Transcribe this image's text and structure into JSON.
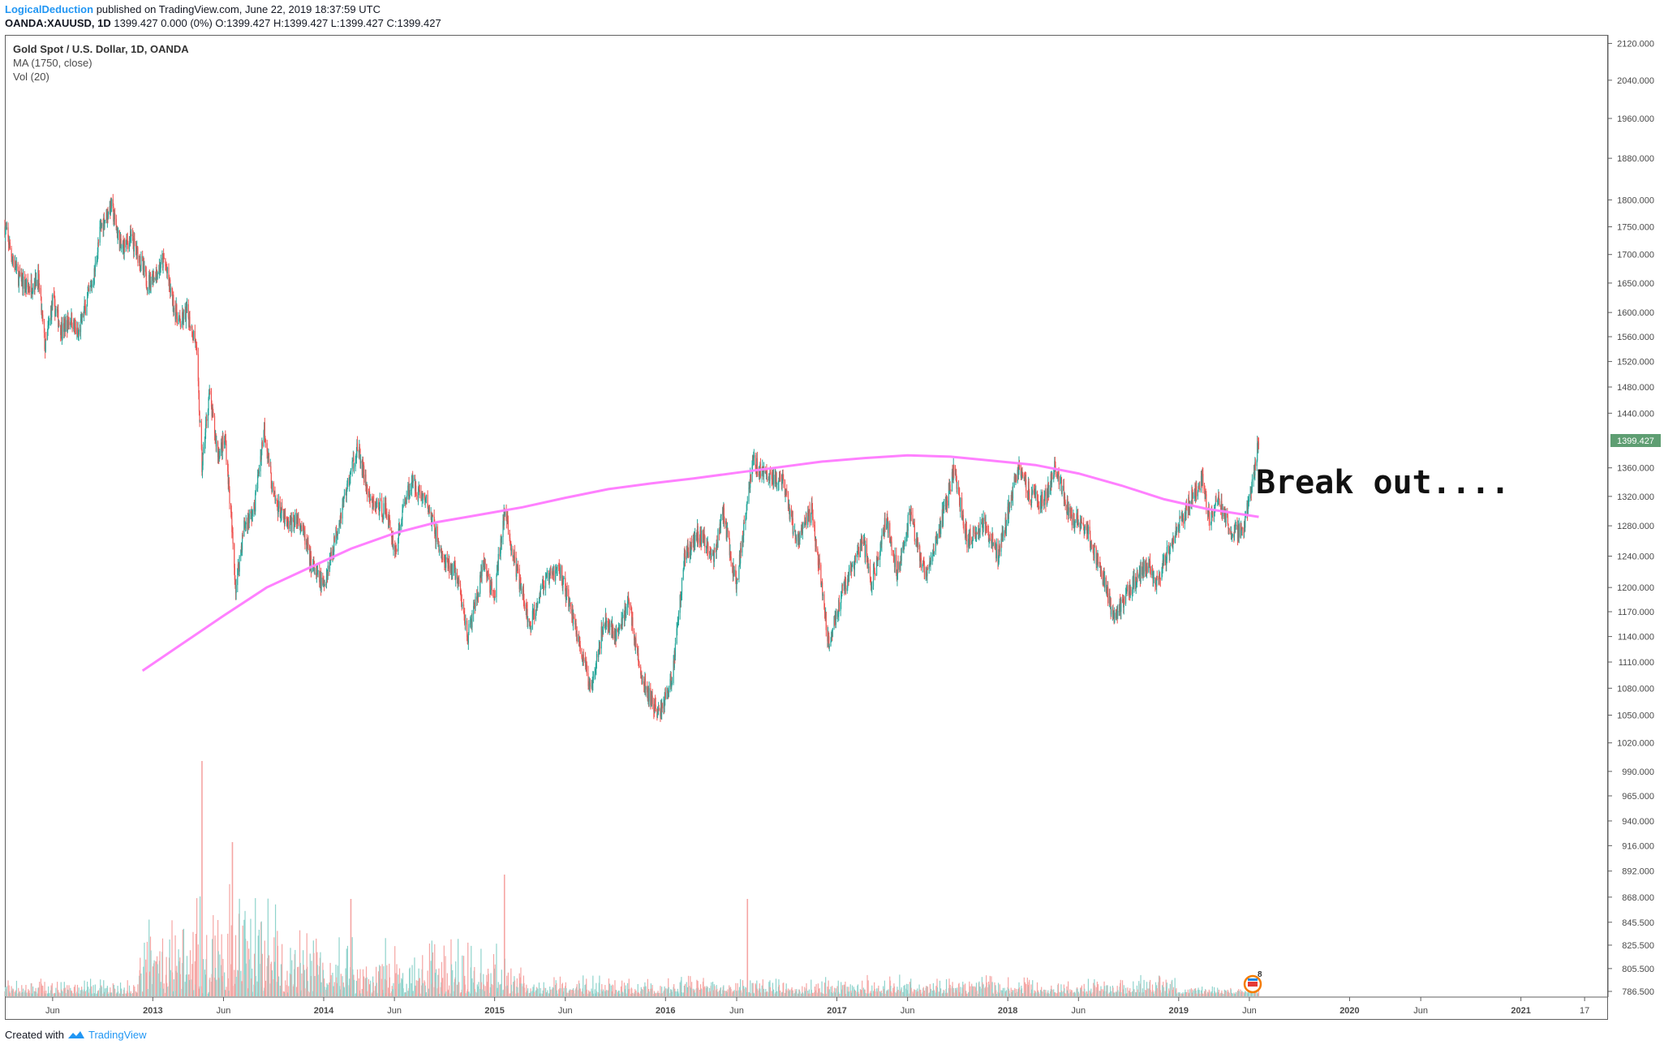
{
  "header": {
    "author": "LogicalDeduction",
    "published": "published on TradingView.com, June 22, 2019 18:37:59 UTC",
    "symbol_line": "OANDA:XAUUSD, 1D",
    "ohlc": "1399.427 0.000 (0%) O:1399.427 H:1399.427 L:1399.427 C:1399.427"
  },
  "legend": {
    "title": "Gold Spot / U.S. Dollar, 1D, OANDA",
    "ma": "MA (1750, close)",
    "vol": "Vol (20)"
  },
  "footer": {
    "created_with": "Created with",
    "brand": "TradingView"
  },
  "colors": {
    "up": "#26a69a",
    "down": "#ef5350",
    "ma": "#ff80ff",
    "vol_up": "#8fd3cc",
    "vol_down": "#f5a5a3",
    "price_tag": "#5e9e72"
  },
  "chart_data": {
    "type": "candlestick",
    "title": "Gold Spot / U.S. Dollar, 1D, OANDA",
    "price_scale": "log",
    "ylim": [
      786.5,
      2130
    ],
    "y_ticks": [
      "2120.000",
      "2040.000",
      "1960.000",
      "1880.000",
      "1800.000",
      "1750.000",
      "1700.000",
      "1650.000",
      "1600.000",
      "1560.000",
      "1520.000",
      "1480.000",
      "1440.000",
      "1360.000",
      "1320.000",
      "1280.000",
      "1240.000",
      "1200.000",
      "1170.000",
      "1140.000",
      "1110.000",
      "1080.000",
      "1050.000",
      "1020.000",
      "990.000",
      "965.000",
      "940.000",
      "916.000",
      "892.000",
      "868.000",
      "845.500",
      "825.500",
      "805.500",
      "786.500"
    ],
    "x_ticks": [
      {
        "label": "Jun",
        "date": "2012-06-01",
        "bold": false
      },
      {
        "label": "2013",
        "date": "2013-01-01",
        "bold": true
      },
      {
        "label": "Jun",
        "date": "2013-06-01",
        "bold": false
      },
      {
        "label": "2014",
        "date": "2014-01-01",
        "bold": true
      },
      {
        "label": "Jun",
        "date": "2014-06-01",
        "bold": false
      },
      {
        "label": "2015",
        "date": "2015-01-01",
        "bold": true
      },
      {
        "label": "Jun",
        "date": "2015-06-01",
        "bold": false
      },
      {
        "label": "2016",
        "date": "2016-01-01",
        "bold": true
      },
      {
        "label": "Jun",
        "date": "2016-06-01",
        "bold": false
      },
      {
        "label": "2017",
        "date": "2017-01-01",
        "bold": true
      },
      {
        "label": "Jun",
        "date": "2017-06-01",
        "bold": false
      },
      {
        "label": "2018",
        "date": "2018-01-01",
        "bold": true
      },
      {
        "label": "Jun",
        "date": "2018-06-01",
        "bold": false
      },
      {
        "label": "2019",
        "date": "2019-01-01",
        "bold": true
      },
      {
        "label": "Jun",
        "date": "2019-06-01",
        "bold": false
      },
      {
        "label": "2020",
        "date": "2020-01-01",
        "bold": true
      },
      {
        "label": "Jun",
        "date": "2020-06-01",
        "bold": false
      },
      {
        "label": "2021",
        "date": "2021-01-01",
        "bold": true
      },
      {
        "label": "17",
        "date": "2021-05-17",
        "bold": false
      }
    ],
    "x_range": [
      "2012-02-20",
      "2021-07-06"
    ],
    "last_price_label": "1399.427",
    "last_price": 1399.427,
    "annotation": "Break out....",
    "price_path": [
      [
        "2012-02-20",
        1750
      ],
      [
        "2012-03-05",
        1700
      ],
      [
        "2012-03-20",
        1660
      ],
      [
        "2012-04-10",
        1640
      ],
      [
        "2012-05-01",
        1660
      ],
      [
        "2012-05-16",
        1540
      ],
      [
        "2012-06-01",
        1620
      ],
      [
        "2012-06-20",
        1570
      ],
      [
        "2012-07-10",
        1590
      ],
      [
        "2012-07-25",
        1560
      ],
      [
        "2012-08-10",
        1610
      ],
      [
        "2012-08-28",
        1660
      ],
      [
        "2012-09-12",
        1750
      ],
      [
        "2012-10-04",
        1790
      ],
      [
        "2012-10-25",
        1710
      ],
      [
        "2012-11-15",
        1730
      ],
      [
        "2012-12-05",
        1690
      ],
      [
        "2012-12-20",
        1650
      ],
      [
        "2013-01-10",
        1670
      ],
      [
        "2013-01-25",
        1690
      ],
      [
        "2013-02-15",
        1610
      ],
      [
        "2013-02-28",
        1580
      ],
      [
        "2013-03-15",
        1600
      ],
      [
        "2013-04-03",
        1550
      ],
      [
        "2013-04-16",
        1360
      ],
      [
        "2013-05-01",
        1470
      ],
      [
        "2013-05-20",
        1380
      ],
      [
        "2013-06-05",
        1400
      ],
      [
        "2013-06-27",
        1200
      ],
      [
        "2013-07-15",
        1280
      ],
      [
        "2013-08-05",
        1300
      ],
      [
        "2013-08-27",
        1420
      ],
      [
        "2013-09-15",
        1320
      ],
      [
        "2013-10-15",
        1280
      ],
      [
        "2013-11-10",
        1290
      ],
      [
        "2013-12-05",
        1230
      ],
      [
        "2013-12-31",
        1200
      ],
      [
        "2014-01-20",
        1250
      ],
      [
        "2014-02-15",
        1320
      ],
      [
        "2014-03-14",
        1390
      ],
      [
        "2014-04-10",
        1310
      ],
      [
        "2014-05-15",
        1300
      ],
      [
        "2014-06-03",
        1245
      ],
      [
        "2014-06-25",
        1320
      ],
      [
        "2014-07-10",
        1340
      ],
      [
        "2014-08-10",
        1310
      ],
      [
        "2014-09-15",
        1230
      ],
      [
        "2014-10-10",
        1220
      ],
      [
        "2014-11-05",
        1140
      ],
      [
        "2014-11-25",
        1190
      ],
      [
        "2014-12-10",
        1230
      ],
      [
        "2014-12-31",
        1185
      ],
      [
        "2015-01-22",
        1300
      ],
      [
        "2015-02-10",
        1240
      ],
      [
        "2015-03-17",
        1150
      ],
      [
        "2015-04-10",
        1200
      ],
      [
        "2015-05-18",
        1225
      ],
      [
        "2015-06-10",
        1180
      ],
      [
        "2015-07-24",
        1080
      ],
      [
        "2015-08-24",
        1160
      ],
      [
        "2015-09-20",
        1140
      ],
      [
        "2015-10-14",
        1185
      ],
      [
        "2015-11-10",
        1090
      ],
      [
        "2015-12-17",
        1050
      ],
      [
        "2016-01-15",
        1090
      ],
      [
        "2016-02-11",
        1240
      ],
      [
        "2016-03-10",
        1270
      ],
      [
        "2016-04-15",
        1240
      ],
      [
        "2016-05-02",
        1300
      ],
      [
        "2016-05-31",
        1200
      ],
      [
        "2016-06-24",
        1320
      ],
      [
        "2016-07-06",
        1370
      ],
      [
        "2016-08-01",
        1350
      ],
      [
        "2016-09-06",
        1340
      ],
      [
        "2016-10-07",
        1260
      ],
      [
        "2016-11-08",
        1300
      ],
      [
        "2016-12-15",
        1130
      ],
      [
        "2017-01-10",
        1190
      ],
      [
        "2017-02-27",
        1260
      ],
      [
        "2017-03-15",
        1200
      ],
      [
        "2017-04-17",
        1290
      ],
      [
        "2017-05-09",
        1220
      ],
      [
        "2017-06-06",
        1295
      ],
      [
        "2017-07-10",
        1210
      ],
      [
        "2017-08-10",
        1280
      ],
      [
        "2017-09-08",
        1355
      ],
      [
        "2017-10-06",
        1260
      ],
      [
        "2017-11-10",
        1285
      ],
      [
        "2017-12-12",
        1240
      ],
      [
        "2018-01-25",
        1365
      ],
      [
        "2018-02-20",
        1320
      ],
      [
        "2018-03-20",
        1310
      ],
      [
        "2018-04-11",
        1365
      ],
      [
        "2018-05-15",
        1290
      ],
      [
        "2018-06-15",
        1280
      ],
      [
        "2018-07-20",
        1220
      ],
      [
        "2018-08-16",
        1160
      ],
      [
        "2018-09-20",
        1200
      ],
      [
        "2018-10-26",
        1230
      ],
      [
        "2018-11-15",
        1210
      ],
      [
        "2018-12-20",
        1260
      ],
      [
        "2019-01-30",
        1320
      ],
      [
        "2019-02-20",
        1345
      ],
      [
        "2019-03-08",
        1285
      ],
      [
        "2019-03-25",
        1320
      ],
      [
        "2019-04-23",
        1270
      ],
      [
        "2019-05-20",
        1275
      ],
      [
        "2019-06-07",
        1340
      ],
      [
        "2019-06-21",
        1399.427
      ]
    ],
    "ma_1750": [
      [
        "2012-12-10",
        1100
      ],
      [
        "2013-03-01",
        1130
      ],
      [
        "2013-06-01",
        1165
      ],
      [
        "2013-09-01",
        1200
      ],
      [
        "2013-12-01",
        1225
      ],
      [
        "2014-03-01",
        1250
      ],
      [
        "2014-06-01",
        1270
      ],
      [
        "2014-09-01",
        1285
      ],
      [
        "2014-12-01",
        1295
      ],
      [
        "2015-03-01",
        1305
      ],
      [
        "2015-06-01",
        1318
      ],
      [
        "2015-09-01",
        1330
      ],
      [
        "2015-12-01",
        1338
      ],
      [
        "2016-03-01",
        1345
      ],
      [
        "2016-06-01",
        1353
      ],
      [
        "2016-09-01",
        1361
      ],
      [
        "2016-12-01",
        1369
      ],
      [
        "2017-03-01",
        1374
      ],
      [
        "2017-06-01",
        1378
      ],
      [
        "2017-09-01",
        1376
      ],
      [
        "2017-12-01",
        1370
      ],
      [
        "2018-03-01",
        1364
      ],
      [
        "2018-06-01",
        1352
      ],
      [
        "2018-09-01",
        1335
      ],
      [
        "2018-12-01",
        1316
      ],
      [
        "2019-03-01",
        1303
      ],
      [
        "2019-06-21",
        1292
      ]
    ]
  }
}
